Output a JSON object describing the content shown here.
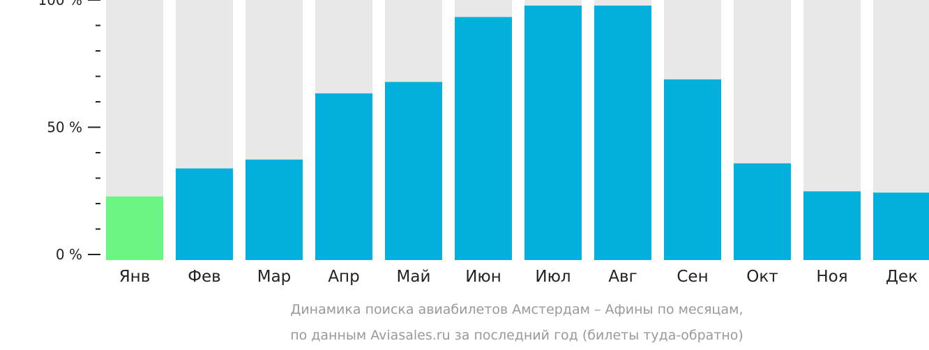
{
  "chart_data": {
    "type": "bar",
    "categories": [
      "Янв",
      "Фев",
      "Мар",
      "Апр",
      "Май",
      "Июн",
      "Июл",
      "Авг",
      "Сен",
      "Окт",
      "Ноя",
      "Дек"
    ],
    "values": [
      25,
      36,
      39.5,
      65.5,
      70,
      95.5,
      100,
      100,
      71,
      38,
      27,
      26.5
    ],
    "highlight_index": 0,
    "ylim": [
      0,
      100
    ],
    "y_ticks": [
      {
        "value": 0,
        "label": "0 %"
      },
      {
        "value": 50,
        "label": "50 %"
      },
      {
        "value": 100,
        "label": "100 %"
      }
    ],
    "y_minor_ticks": [
      10,
      20,
      30,
      40,
      60,
      70,
      80,
      90
    ],
    "grid": false,
    "colors": {
      "bar": "#03b0dc",
      "highlight": "#6df583",
      "background_bar": "#e8e8e8",
      "text": "#222222",
      "caption": "#999999"
    }
  },
  "caption": {
    "line1": "Динамика поиска авиабилетов Амстердам – Афины по месяцам,",
    "line2": "по данным Aviasales.ru за последний год (билеты туда-обратно)"
  }
}
